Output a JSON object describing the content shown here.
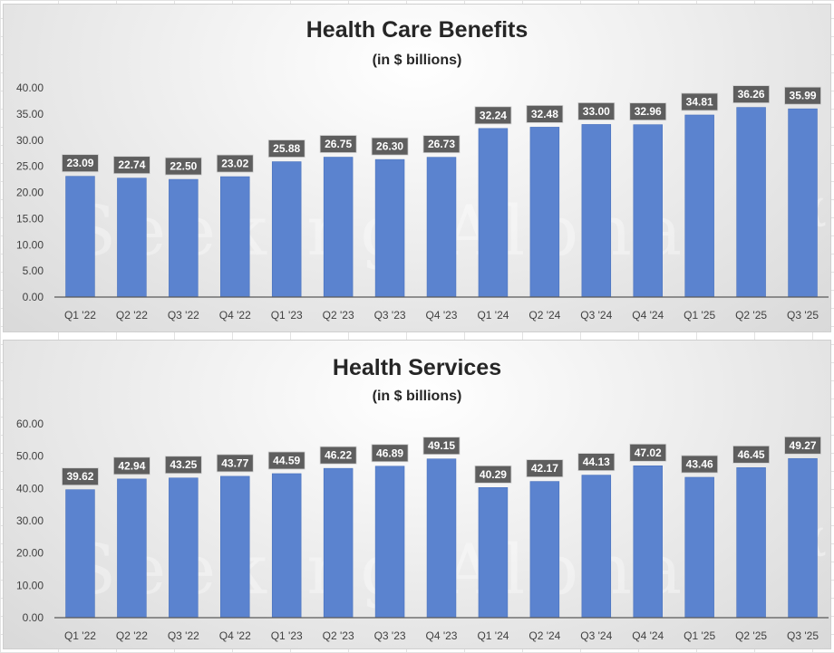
{
  "watermark": "Seeking Alpha",
  "watermark_mark": "α",
  "colors": {
    "bar": "#5b83cf",
    "bar_edge": "#4a72bd",
    "label_box": "#5e5e5e",
    "label_text": "#ffffff",
    "axis_text": "#404040",
    "baseline": "#595959"
  },
  "chart_data": [
    {
      "type": "bar",
      "title": "Health Care Benefits",
      "subtitle": "(in $ billions)",
      "xlabel": "",
      "ylabel": "",
      "ylim": [
        0,
        40
      ],
      "yticks": [
        "0.00",
        "5.00",
        "10.00",
        "15.00",
        "20.00",
        "25.00",
        "30.00",
        "35.00",
        "40.00"
      ],
      "categories": [
        "Q1 '22",
        "Q2 '22",
        "Q3 '22",
        "Q4 '22",
        "Q1 '23",
        "Q2 '23",
        "Q3 '23",
        "Q4 '23",
        "Q1 '24",
        "Q2 '24",
        "Q3 '24",
        "Q4 '24",
        "Q1 '25",
        "Q2 '25",
        "Q3 '25"
      ],
      "values": [
        23.09,
        22.74,
        22.5,
        23.02,
        25.88,
        26.75,
        26.3,
        26.73,
        32.24,
        32.48,
        33.0,
        32.96,
        34.81,
        36.26,
        35.99
      ],
      "labels": [
        "23.09",
        "22.74",
        "22.50",
        "23.02",
        "25.88",
        "26.75",
        "26.30",
        "26.73",
        "32.24",
        "32.48",
        "33.00",
        "32.96",
        "34.81",
        "36.26",
        "35.99"
      ],
      "grid": false,
      "legend": "none"
    },
    {
      "type": "bar",
      "title": "Health Services",
      "subtitle": "(in $ billions)",
      "xlabel": "",
      "ylabel": "",
      "ylim": [
        0,
        60
      ],
      "yticks": [
        "0.00",
        "10.00",
        "20.00",
        "30.00",
        "40.00",
        "50.00",
        "60.00"
      ],
      "categories": [
        "Q1 '22",
        "Q2 '22",
        "Q3 '22",
        "Q4 '22",
        "Q1 '23",
        "Q2 '23",
        "Q3 '23",
        "Q4 '23",
        "Q1 '24",
        "Q2 '24",
        "Q3 '24",
        "Q4 '24",
        "Q1 '25",
        "Q2 '25",
        "Q3 '25"
      ],
      "values": [
        39.62,
        42.94,
        43.25,
        43.77,
        44.59,
        46.22,
        46.89,
        49.15,
        40.29,
        42.17,
        44.13,
        47.02,
        43.46,
        46.45,
        49.27
      ],
      "labels": [
        "39.62",
        "42.94",
        "43.25",
        "43.77",
        "44.59",
        "46.22",
        "46.89",
        "49.15",
        "40.29",
        "42.17",
        "44.13",
        "47.02",
        "43.46",
        "46.45",
        "49.27"
      ],
      "grid": false,
      "legend": "none"
    }
  ]
}
